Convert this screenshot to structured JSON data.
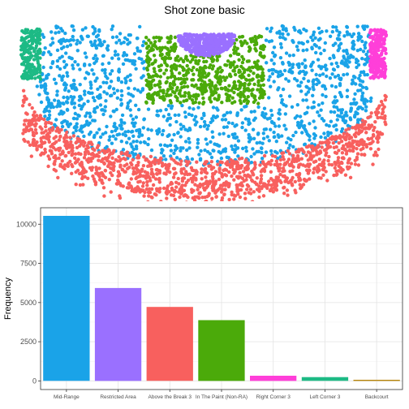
{
  "chart_data": [
    {
      "type": "scatter",
      "title": "Shot zone basic",
      "xlabel": "",
      "ylabel": "",
      "grid": false,
      "legend": "none",
      "series": [
        {
          "zone": "Mid-Range",
          "color": "#1AA3E8"
        },
        {
          "zone": "Restricted Area",
          "color": "#9A70FF"
        },
        {
          "zone": "Above the Break 3",
          "color": "#F8605E"
        },
        {
          "zone": "In The Paint (Non-RA)",
          "color": "#4BAA0A"
        },
        {
          "zone": "Right Corner 3",
          "color": "#FF3FD9"
        },
        {
          "zone": "Left Corner 3",
          "color": "#1DBA85"
        }
      ]
    },
    {
      "type": "bar",
      "title": "",
      "xlabel": "",
      "ylabel": "Frequency",
      "ylim": [
        0,
        10500
      ],
      "yticks": [
        0,
        2500,
        5000,
        7500,
        10000
      ],
      "ytick_labels": [
        "0",
        "2500",
        "5000",
        "7500",
        "10000"
      ],
      "grid": true,
      "categories": [
        "Mid-Range",
        "Restricted Area",
        "Above the Break 3",
        "In The Paint (Non-RA)",
        "Right Corner 3",
        "Left Corner 3",
        "Backcourt"
      ],
      "values": [
        10530,
        5930,
        4720,
        3880,
        330,
        240,
        72
      ],
      "colors": [
        "#1AA3E8",
        "#9A70FF",
        "#F8605E",
        "#4BAA0A",
        "#FF3FD9",
        "#1DBA85",
        "#B8860B"
      ]
    }
  ]
}
